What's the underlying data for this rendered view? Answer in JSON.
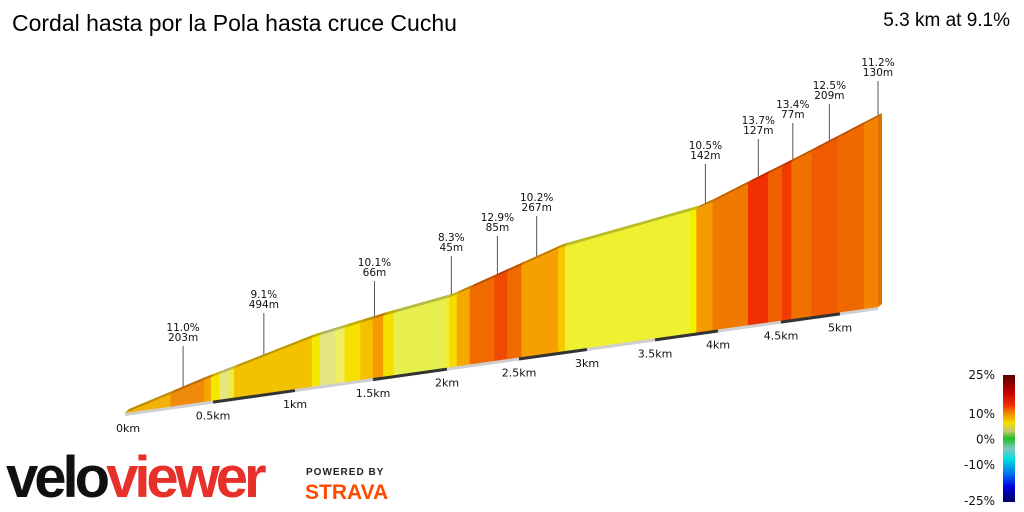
{
  "header": {
    "title": "Cordal hasta por la Pola hasta cruce Cuchu",
    "summary": "5.3 km at 9.1%"
  },
  "branding": {
    "logo_part1": "velo",
    "logo_part2": "viewer",
    "powered_by": "POWERED BY",
    "strava": "STRAVA"
  },
  "chart_data": {
    "type": "area",
    "title": "",
    "total_km": 5.3,
    "x_ticks": [
      "0km",
      "0.5km",
      "1km",
      "1.5km",
      "2km",
      "2.5km",
      "3km",
      "3.5km",
      "4km",
      "4.5km",
      "5km"
    ],
    "x_tick_values": [
      0,
      0.5,
      1,
      1.5,
      2,
      2.5,
      3,
      3.5,
      4,
      4.5,
      5
    ],
    "segment_labels": [
      {
        "km": 0.33,
        "gradient": "11.0%",
        "length": "203m"
      },
      {
        "km": 0.81,
        "gradient": "9.1%",
        "length": "494m"
      },
      {
        "km": 1.51,
        "gradient": "10.1%",
        "length": "66m"
      },
      {
        "km": 2.03,
        "gradient": "8.3%",
        "length": "45m"
      },
      {
        "km": 2.35,
        "gradient": "12.9%",
        "length": "85m"
      },
      {
        "km": 2.63,
        "gradient": "10.2%",
        "length": "267m"
      },
      {
        "km": 3.9,
        "gradient": "10.5%",
        "length": "142m"
      },
      {
        "km": 4.32,
        "gradient": "13.7%",
        "length": "127m"
      },
      {
        "km": 4.6,
        "gradient": "13.4%",
        "length": "77m"
      },
      {
        "km": 4.91,
        "gradient": "12.5%",
        "length": "209m"
      },
      {
        "km": 5.3,
        "gradient": "11.2%",
        "length": "130m"
      }
    ],
    "gradient_bands": [
      {
        "from": 0,
        "to": 0.26,
        "color": "#f2b20a"
      },
      {
        "from": 0.26,
        "to": 0.45,
        "color": "#f08a0a"
      },
      {
        "from": 0.45,
        "to": 0.49,
        "color": "#f5a500"
      },
      {
        "from": 0.49,
        "to": 0.54,
        "color": "#f5e600"
      },
      {
        "from": 0.54,
        "to": 0.6,
        "color": "#e6e67a"
      },
      {
        "from": 0.6,
        "to": 0.63,
        "color": "#f0ea40"
      },
      {
        "from": 0.63,
        "to": 1.11,
        "color": "#f2c200"
      },
      {
        "from": 1.11,
        "to": 1.16,
        "color": "#f5e800"
      },
      {
        "from": 1.16,
        "to": 1.26,
        "color": "#e6e680"
      },
      {
        "from": 1.26,
        "to": 1.32,
        "color": "#eeee60"
      },
      {
        "from": 1.32,
        "to": 1.42,
        "color": "#f5e200"
      },
      {
        "from": 1.42,
        "to": 1.5,
        "color": "#f5c000"
      },
      {
        "from": 1.5,
        "to": 1.57,
        "color": "#f59a00"
      },
      {
        "from": 1.57,
        "to": 1.64,
        "color": "#f5e000"
      },
      {
        "from": 1.64,
        "to": 1.99,
        "color": "#e8f050"
      },
      {
        "from": 1.99,
        "to": 2.02,
        "color": "#f5ec30"
      },
      {
        "from": 2.02,
        "to": 2.07,
        "color": "#f5dc00"
      },
      {
        "from": 2.07,
        "to": 2.16,
        "color": "#f5a800"
      },
      {
        "from": 2.16,
        "to": 2.33,
        "color": "#f06a00"
      },
      {
        "from": 2.33,
        "to": 2.42,
        "color": "#f04a00"
      },
      {
        "from": 2.42,
        "to": 2.52,
        "color": "#f06a00"
      },
      {
        "from": 2.52,
        "to": 2.79,
        "color": "#f5a000"
      },
      {
        "from": 2.79,
        "to": 2.84,
        "color": "#f5c800"
      },
      {
        "from": 2.84,
        "to": 3.78,
        "color": "#eef030"
      },
      {
        "from": 3.78,
        "to": 3.83,
        "color": "#f5f000"
      },
      {
        "from": 3.83,
        "to": 3.96,
        "color": "#f59a00"
      },
      {
        "from": 3.96,
        "to": 4.24,
        "color": "#f07a00"
      },
      {
        "from": 4.24,
        "to": 4.4,
        "color": "#f03000"
      },
      {
        "from": 4.4,
        "to": 4.51,
        "color": "#f06000"
      },
      {
        "from": 4.51,
        "to": 4.59,
        "color": "#f03c00"
      },
      {
        "from": 4.59,
        "to": 4.76,
        "color": "#f07000"
      },
      {
        "from": 4.76,
        "to": 4.98,
        "color": "#f05a00"
      },
      {
        "from": 4.98,
        "to": 5.19,
        "color": "#f06800"
      },
      {
        "from": 5.19,
        "to": 5.3,
        "color": "#f58200"
      }
    ],
    "legend": {
      "labels": [
        "25%",
        "10%",
        "0%",
        "-10%",
        "-25%"
      ],
      "stops": [
        {
          "value": 25,
          "color": "#5a0000"
        },
        {
          "value": 18,
          "color": "#c80000"
        },
        {
          "value": 13,
          "color": "#f03000"
        },
        {
          "value": 10,
          "color": "#f08a00"
        },
        {
          "value": 6,
          "color": "#f0e000"
        },
        {
          "value": 3,
          "color": "#c8c870"
        },
        {
          "value": 0,
          "color": "#20c020"
        },
        {
          "value": -4,
          "color": "#80c8c0"
        },
        {
          "value": -8,
          "color": "#00e0e0"
        },
        {
          "value": -14,
          "color": "#0070f0"
        },
        {
          "value": -19,
          "color": "#0000e0"
        },
        {
          "value": -25,
          "color": "#000060"
        }
      ]
    }
  }
}
